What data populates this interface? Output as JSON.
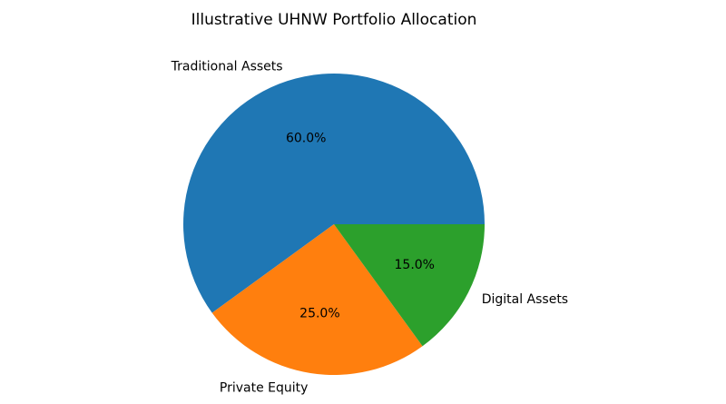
{
  "chart_data": {
    "type": "pie",
    "title": "Illustrative UHNW Portfolio Allocation",
    "categories": [
      "Traditional Assets",
      "Private Equity",
      "Digital Assets"
    ],
    "values": [
      60,
      25,
      15
    ],
    "value_labels": [
      "60.0%",
      "25.0%",
      "15.0%"
    ],
    "colors": [
      "#1f77b4",
      "#ff7f0e",
      "#2ca02c"
    ]
  }
}
